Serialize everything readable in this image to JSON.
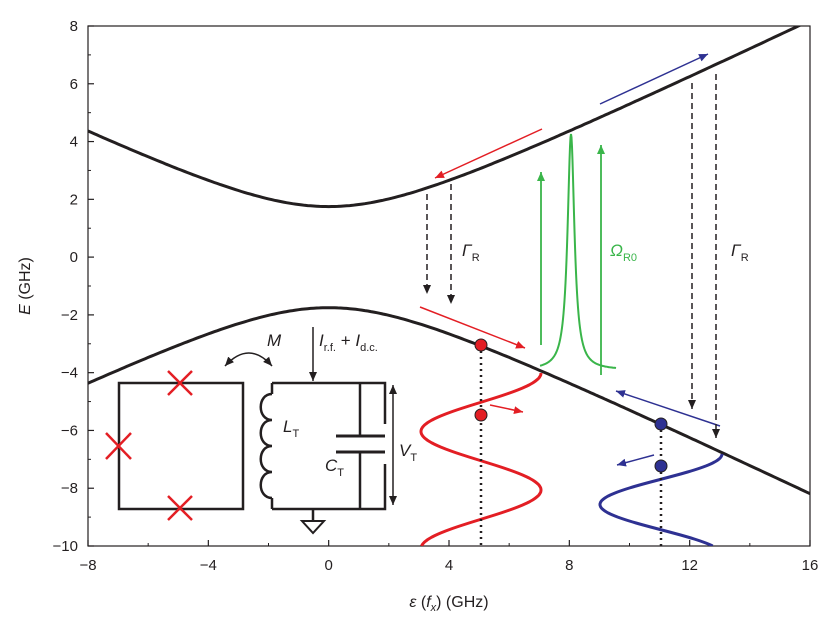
{
  "chart_data": {
    "type": "line",
    "xlabel": {
      "sym": "ε",
      "open": " (",
      "fsym": "f",
      "fsub": "x",
      "close": ")",
      "unit": " (GHz)"
    },
    "ylabel": {
      "sym": "E",
      "unit": " (GHz)"
    },
    "xlim": [
      -8,
      16
    ],
    "ylim": [
      -10,
      8
    ],
    "xticks": [
      "−8",
      "−4",
      "0",
      "4",
      "8",
      "12",
      "16"
    ],
    "yticks": [
      "8",
      "6",
      "4",
      "2",
      "0",
      "−2",
      "−4",
      "−6",
      "−8",
      "−10"
    ],
    "series": [
      {
        "x": [
          -8,
          -6,
          -4,
          -2,
          0,
          2,
          4,
          6,
          8,
          10,
          12,
          14,
          16
        ],
        "values": [
          4.4,
          3.47,
          2.61,
          1.97,
          1.75,
          1.97,
          2.61,
          3.47,
          4.4,
          5.38,
          6.36,
          7.36,
          8.36
        ]
      },
      {
        "x": [
          -8,
          -6,
          -4,
          -2,
          0,
          2,
          4,
          6,
          8,
          10,
          12,
          14,
          16
        ],
        "values": [
          -4.4,
          -3.47,
          -2.61,
          -1.97,
          -1.75,
          -1.97,
          -2.61,
          -3.47,
          -4.4,
          -5.38,
          -6.36,
          -7.36,
          -8.36
        ]
      }
    ],
    "annotations": {
      "gamma_left": {
        "sym": "Γ",
        "sub": "R"
      },
      "gamma_right": {
        "sym": "Γ",
        "sub": "R"
      },
      "omega": {
        "sym": "Ω",
        "sub": "R0"
      },
      "mutual": "M",
      "current": {
        "i1": "I",
        "s1": "r.f.",
        "plus": " + ",
        "i2": "I",
        "s2": "d.c."
      },
      "inductor": {
        "sym": "L",
        "sub": "T"
      },
      "capacitor": {
        "sym": "C",
        "sub": "T"
      },
      "voltage": {
        "sym": "V",
        "sub": "T"
      }
    },
    "colors": {
      "curves": "#231f20",
      "red": "#e31e24",
      "blue": "#2e3192",
      "green": "#3ab54a",
      "black": "#231f20"
    }
  }
}
